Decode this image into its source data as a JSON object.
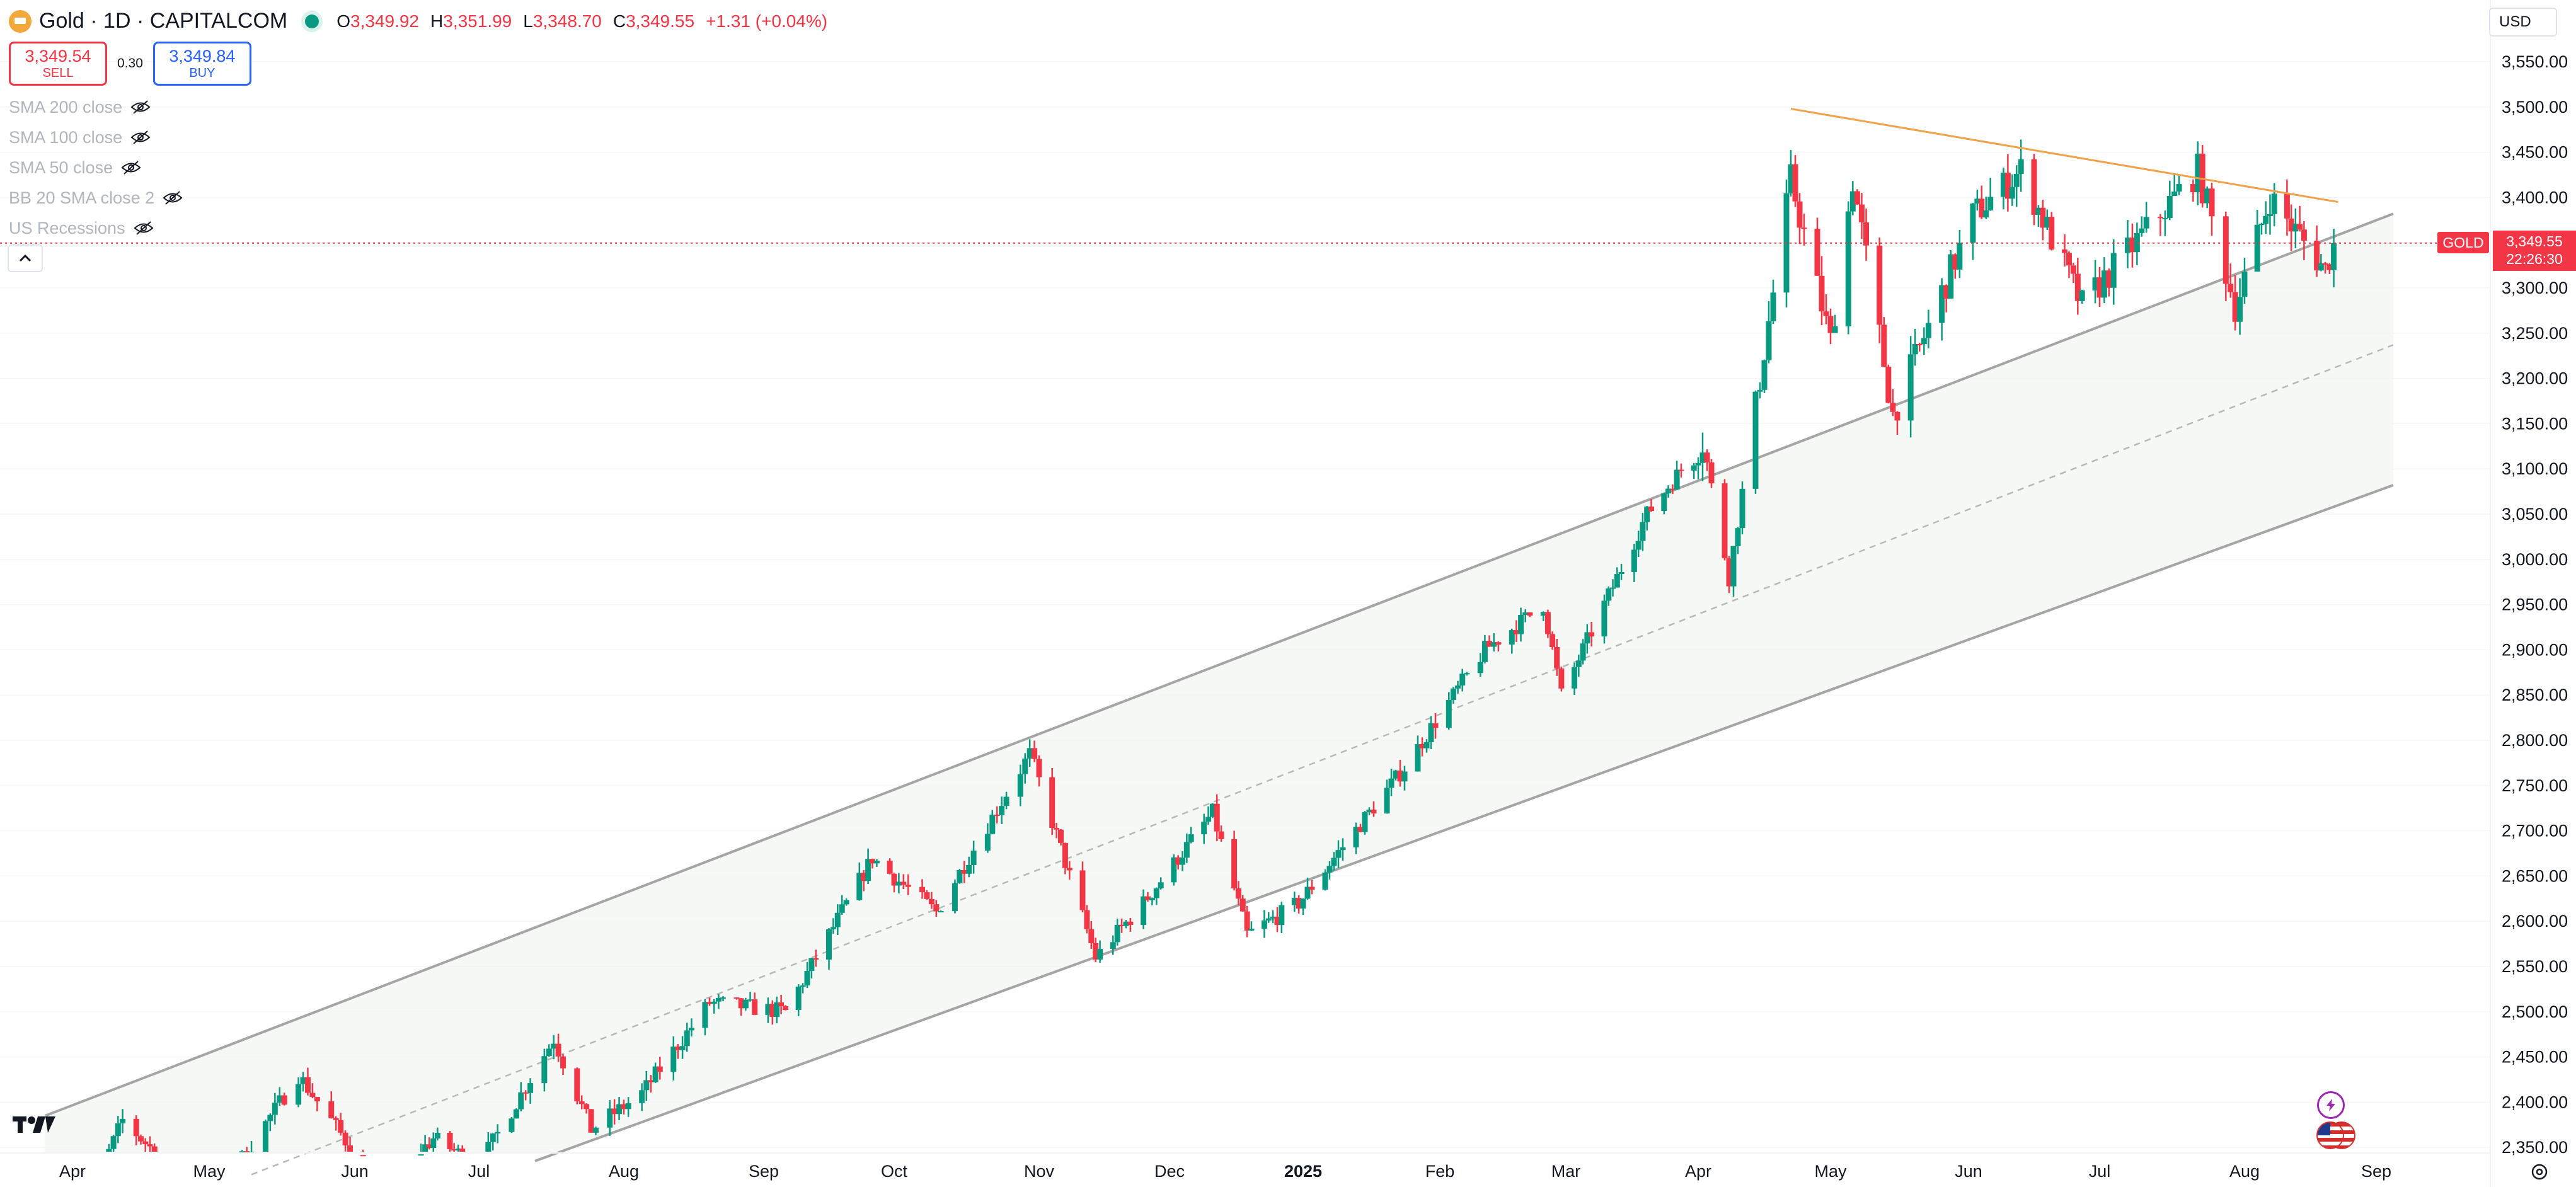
{
  "header": {
    "symbol": "Gold · 1D · CAPITALCOM",
    "ohlc": {
      "o_label": "O",
      "o": "3,349.92",
      "h_label": "H",
      "h": "3,351.99",
      "l_label": "L",
      "l": "3,348.70",
      "c_label": "C",
      "c": "3,349.55",
      "change": "+1.31 (+0.04%)"
    }
  },
  "trade": {
    "sell_price": "3,349.54",
    "sell_label": "SELL",
    "spread": "0.30",
    "buy_price": "3,349.84",
    "buy_label": "BUY"
  },
  "indicators": [
    "SMA 200 close",
    "SMA 100 close",
    "SMA 50 close",
    "BB 20 SMA close 2",
    "US Recessions"
  ],
  "currency": "USD",
  "price_tag": {
    "symbol": "GOLD",
    "price": "3,349.55",
    "countdown": "22:26:30"
  },
  "icons": [
    "gold-symbol-icon",
    "market-open-dot-icon",
    "eye-hidden-icon",
    "chevron-up-icon",
    "tradingview-logo-icon",
    "lightning-icon",
    "us-flag-icon",
    "settings-gear-icon"
  ],
  "colors": {
    "up": "#089981",
    "down": "#f23645",
    "channel": "#a5a5a5",
    "trendline": "#f0a14a"
  },
  "chart_data": {
    "type": "candlestick",
    "x_labels": [
      "Apr",
      "May",
      "Jun",
      "Jul",
      "Aug",
      "Sep",
      "Oct",
      "Nov",
      "Dec",
      "2025",
      "Feb",
      "Mar",
      "Apr",
      "May",
      "Jun",
      "Jul",
      "Aug",
      "Sep"
    ],
    "y_ticks": [
      2350,
      2400,
      2450,
      2500,
      2550,
      2600,
      2650,
      2700,
      2750,
      2800,
      2850,
      2900,
      2950,
      3000,
      3050,
      3100,
      3150,
      3200,
      3250,
      3300,
      3350,
      3400,
      3450,
      3500,
      3550
    ],
    "y_tick_labels": [
      "2,350.00",
      "2,400.00",
      "2,450.00",
      "2,500.00",
      "2,550.00",
      "2,600.00",
      "2,650.00",
      "2,700.00",
      "2,750.00",
      "2,800.00",
      "2,850.00",
      "2,900.00",
      "2,950.00",
      "3,000.00",
      "3,050.00",
      "3,100.00",
      "3,150.00",
      "3,200.00",
      "3,250.00",
      "3,300.00",
      "3,350.00",
      "3,400.00",
      "3,450.00",
      "3,500.00",
      "3,550.00"
    ],
    "ylim": [
      2330,
      3580
    ],
    "last_price": 3349.55,
    "price_path": [
      [
        "2024-04-01",
        2250
      ],
      [
        "2024-04-12",
        2380
      ],
      [
        "2024-04-22",
        2330
      ],
      [
        "2024-05-03",
        2300
      ],
      [
        "2024-05-20",
        2430
      ],
      [
        "2024-06-07",
        2300
      ],
      [
        "2024-06-20",
        2360
      ],
      [
        "2024-07-01",
        2330
      ],
      [
        "2024-07-17",
        2470
      ],
      [
        "2024-07-25",
        2370
      ],
      [
        "2024-08-05",
        2410
      ],
      [
        "2024-08-20",
        2510
      ],
      [
        "2024-09-06",
        2500
      ],
      [
        "2024-09-26",
        2670
      ],
      [
        "2024-10-10",
        2610
      ],
      [
        "2024-10-30",
        2785
      ],
      [
        "2024-11-14",
        2560
      ],
      [
        "2024-11-25",
        2620
      ],
      [
        "2024-12-11",
        2720
      ],
      [
        "2024-12-19",
        2585
      ],
      [
        "2024-12-31",
        2620
      ],
      [
        "2025-01-24",
        2770
      ],
      [
        "2025-02-11",
        2900
      ],
      [
        "2025-02-24",
        2950
      ],
      [
        "2025-02-28",
        2850
      ],
      [
        "2025-03-20",
        3050
      ],
      [
        "2025-04-02",
        3130
      ],
      [
        "2025-04-08",
        2980
      ],
      [
        "2025-04-22",
        3420
      ],
      [
        "2025-05-01",
        3240
      ],
      [
        "2025-05-06",
        3420
      ],
      [
        "2025-05-15",
        3160
      ],
      [
        "2025-06-02",
        3380
      ],
      [
        "2025-06-13",
        3430
      ],
      [
        "2025-06-27",
        3280
      ],
      [
        "2025-07-07",
        3340
      ],
      [
        "2025-07-22",
        3430
      ],
      [
        "2025-07-30",
        3280
      ],
      [
        "2025-08-07",
        3400
      ],
      [
        "2025-08-20",
        3320
      ],
      [
        "2025-08-22",
        3349.55
      ]
    ],
    "channel": {
      "upper": [
        [
          "2024-03-26",
          2385
        ],
        [
          "2025-09-05",
          3382
        ]
      ],
      "middle": [
        [
          "2024-05-10",
          2320
        ],
        [
          "2025-09-05",
          3237
        ]
      ],
      "lower": [
        [
          "2024-07-13",
          2335
        ],
        [
          "2025-09-05",
          3082
        ]
      ]
    },
    "trendline": [
      [
        "2025-04-22",
        3498
      ],
      [
        "2025-08-23",
        3395
      ]
    ]
  }
}
